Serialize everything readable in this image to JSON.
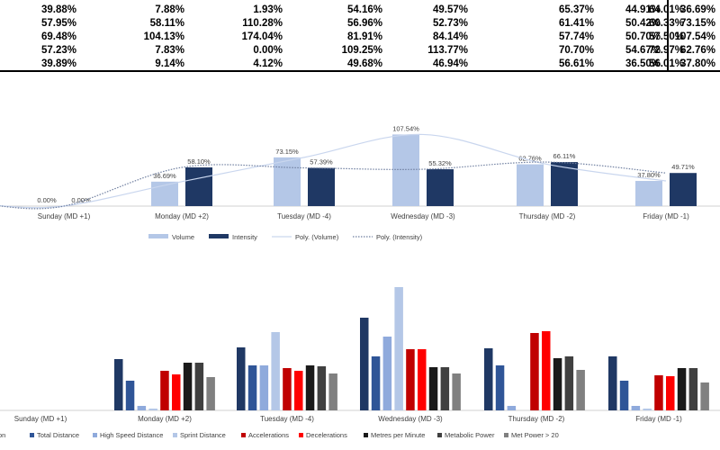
{
  "table": {
    "rows": [
      [
        "39.88%",
        "7.88%",
        "1.93%",
        "54.16%",
        "49.57%",
        "65.37%",
        "64.01%",
        "44.91%",
        "36.69%"
      ],
      [
        "57.95%",
        "58.11%",
        "110.28%",
        "56.96%",
        "52.73%",
        "61.41%",
        "60.33%",
        "50.42%",
        "73.15%"
      ],
      [
        "69.48%",
        "104.13%",
        "174.04%",
        "81.91%",
        "84.14%",
        "57.74%",
        "57.50%",
        "50.70%",
        "107.54%"
      ],
      [
        "57.23%",
        "7.83%",
        "0.00%",
        "109.25%",
        "113.77%",
        "70.70%",
        "72.97%",
        "54.67%",
        "62.76%"
      ],
      [
        "39.89%",
        "9.14%",
        "4.12%",
        "49.68%",
        "46.94%",
        "56.61%",
        "56.01%",
        "36.50%",
        "37.80%"
      ]
    ]
  },
  "chart_data": [
    {
      "type": "bar",
      "categories": [
        "Sunday (MD +1)",
        "Monday (MD +2)",
        "Tuesday (MD -4)",
        "Wednesday (MD -3)",
        "Thursday (MD -2)",
        "Friday (MD -1)"
      ],
      "series": [
        {
          "name": "Volume",
          "values": [
            0,
            36.69,
            73.15,
            107.54,
            62.76,
            37.8
          ],
          "labels": [
            "0.00%",
            "36.69%",
            "73.15%",
            "107.54%",
            "62.76%",
            "37.80%"
          ],
          "color": "#b4c7e7"
        },
        {
          "name": "Intensity",
          "values": [
            0,
            58.1,
            57.39,
            55.32,
            66.11,
            49.71
          ],
          "labels": [
            "0.00%",
            "58.10%",
            "57.39%",
            "55.32%",
            "66.11%",
            "49.71%"
          ],
          "color": "#1f3864"
        }
      ],
      "trendlines": [
        {
          "name": "Poly. (Volume)",
          "series": "Volume",
          "color": "#c9d6ee",
          "dash": "solid"
        },
        {
          "name": "Poly. (Intensity)",
          "series": "Intensity",
          "color": "#6f7fa0",
          "dash": "dotted"
        }
      ],
      "ylim": [
        0,
        120
      ],
      "grid": false,
      "legend_position": "bottom"
    },
    {
      "type": "bar",
      "categories": [
        "Sunday (MD +1)",
        "Monday (MD +2)",
        "Tuesday (MD -4)",
        "Wednesday (MD -3)",
        "Thursday (MD -2)",
        "Friday (MD -1)"
      ],
      "series": [
        {
          "name": "Duration",
          "color": "#1f3864",
          "values": [
            0,
            57,
            70,
            103,
            69,
            60
          ]
        },
        {
          "name": "Total Distance",
          "color": "#2f5597",
          "values": [
            0,
            33,
            50,
            60,
            50,
            33
          ]
        },
        {
          "name": "High Speed Distance",
          "color": "#8faadc",
          "values": [
            0,
            5,
            50,
            82,
            5,
            5
          ]
        },
        {
          "name": "Sprint Distance",
          "color": "#b4c7e7",
          "values": [
            0,
            2,
            87,
            137,
            0,
            2
          ]
        },
        {
          "name": "Accelerations",
          "color": "#c00000",
          "values": [
            0,
            44,
            47,
            68,
            86,
            39
          ]
        },
        {
          "name": "Decelerations",
          "color": "#ff0000",
          "values": [
            0,
            40,
            44,
            68,
            88,
            38
          ]
        },
        {
          "name": "Metres per Minute",
          "color": "#1a1a1a",
          "values": [
            0,
            53,
            50,
            48,
            58,
            47
          ]
        },
        {
          "name": "Metabolic Power",
          "color": "#404040",
          "values": [
            0,
            53,
            49,
            48,
            60,
            47
          ]
        },
        {
          "name": "Met Power > 20",
          "color": "#808080",
          "values": [
            0,
            37,
            41,
            41,
            45,
            31
          ]
        }
      ],
      "grid": false,
      "legend_position": "bottom"
    }
  ]
}
